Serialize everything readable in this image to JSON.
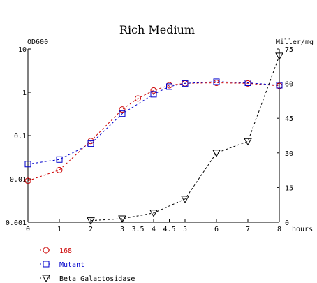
{
  "chart_data": {
    "type": "line",
    "title": "Rich Medium",
    "xlabel": "hours",
    "ylabel_left": "OD600",
    "ylabel_right": "Miller/mg",
    "xlim": [
      0,
      8
    ],
    "x_ticks": [
      {
        "value": 0,
        "label": "0"
      },
      {
        "value": 1,
        "label": "1"
      },
      {
        "value": 2,
        "label": "2"
      },
      {
        "value": 3,
        "label": "3"
      },
      {
        "value": 3.5,
        "label": "3.5"
      },
      {
        "value": 4,
        "label": "4"
      },
      {
        "value": 4.5,
        "label": "4.5"
      },
      {
        "value": 5,
        "label": "5"
      },
      {
        "value": 6,
        "label": "6"
      },
      {
        "value": 7,
        "label": "7"
      },
      {
        "value": 8,
        "label": "8"
      }
    ],
    "y_left": {
      "scale": "log",
      "range": [
        0.001,
        10
      ],
      "ticks": [
        {
          "value": 10,
          "label": "10"
        },
        {
          "value": 1,
          "label": "1"
        },
        {
          "value": 0.1,
          "label": "0.1"
        },
        {
          "value": 0.01,
          "label": "0.01"
        },
        {
          "value": 0.001,
          "label": "0.001"
        }
      ]
    },
    "y_right": {
      "scale": "linear",
      "range": [
        0,
        75
      ],
      "ticks": [
        {
          "value": 75,
          "label": "75"
        },
        {
          "value": 60,
          "label": "60"
        },
        {
          "value": 45,
          "label": "45"
        },
        {
          "value": 30,
          "label": "30"
        },
        {
          "value": 15,
          "label": "15"
        },
        {
          "value": 0,
          "label": "0"
        }
      ]
    },
    "grid": false,
    "legend_position": "bottom-left",
    "series": [
      {
        "name": "168",
        "axis": "left",
        "marker": "circle",
        "color": "#cc0000",
        "x": [
          0,
          1,
          2,
          3,
          3.5,
          4,
          4.5,
          5,
          6,
          7,
          8
        ],
        "y": [
          0.009,
          0.016,
          0.075,
          0.4,
          0.72,
          1.1,
          1.45,
          1.6,
          1.65,
          1.6,
          1.4
        ]
      },
      {
        "name": "Mutant",
        "axis": "left",
        "marker": "square",
        "color": "#0000cc",
        "x": [
          0,
          1,
          2,
          3,
          4,
          4.5,
          5,
          6,
          7,
          8
        ],
        "y": [
          0.022,
          0.028,
          0.065,
          0.32,
          0.9,
          1.35,
          1.6,
          1.75,
          1.65,
          1.45
        ]
      },
      {
        "name": "Beta Galactosidase",
        "axis": "right",
        "marker": "triangle-down",
        "color": "#000000",
        "x": [
          2,
          3,
          4,
          5,
          6,
          7,
          8
        ],
        "y": [
          0.7,
          1.5,
          4,
          10,
          30,
          35,
          72
        ]
      }
    ]
  }
}
